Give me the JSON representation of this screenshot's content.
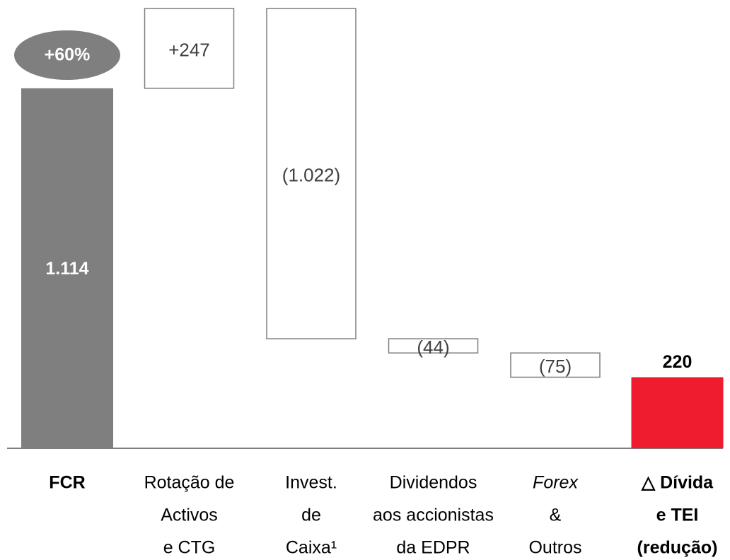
{
  "chart_data": {
    "type": "waterfall",
    "annotation": "+60%",
    "categories": [
      [
        "FCR"
      ],
      [
        "Rotação de",
        "Activos",
        "e CTG"
      ],
      [
        "Invest.",
        "de",
        "Caixa¹"
      ],
      [
        "Dividendos",
        "aos accionistas",
        "da EDPR"
      ],
      [
        "Forex",
        "&",
        "Outros"
      ],
      [
        "△ Dívida",
        "e TEI",
        "(redução)"
      ]
    ],
    "values": [
      1114,
      247,
      -1022,
      -44,
      -75,
      220
    ],
    "value_labels": [
      "1.114",
      "+247",
      "(1.022)",
      "(44)",
      "(75)",
      "220"
    ],
    "colors": [
      "#7f7f7f",
      "#ffffff",
      "#ffffff",
      "#ffffff",
      "#ffffff",
      "#ee1c2e"
    ],
    "stroke": "#7f7f7f"
  }
}
